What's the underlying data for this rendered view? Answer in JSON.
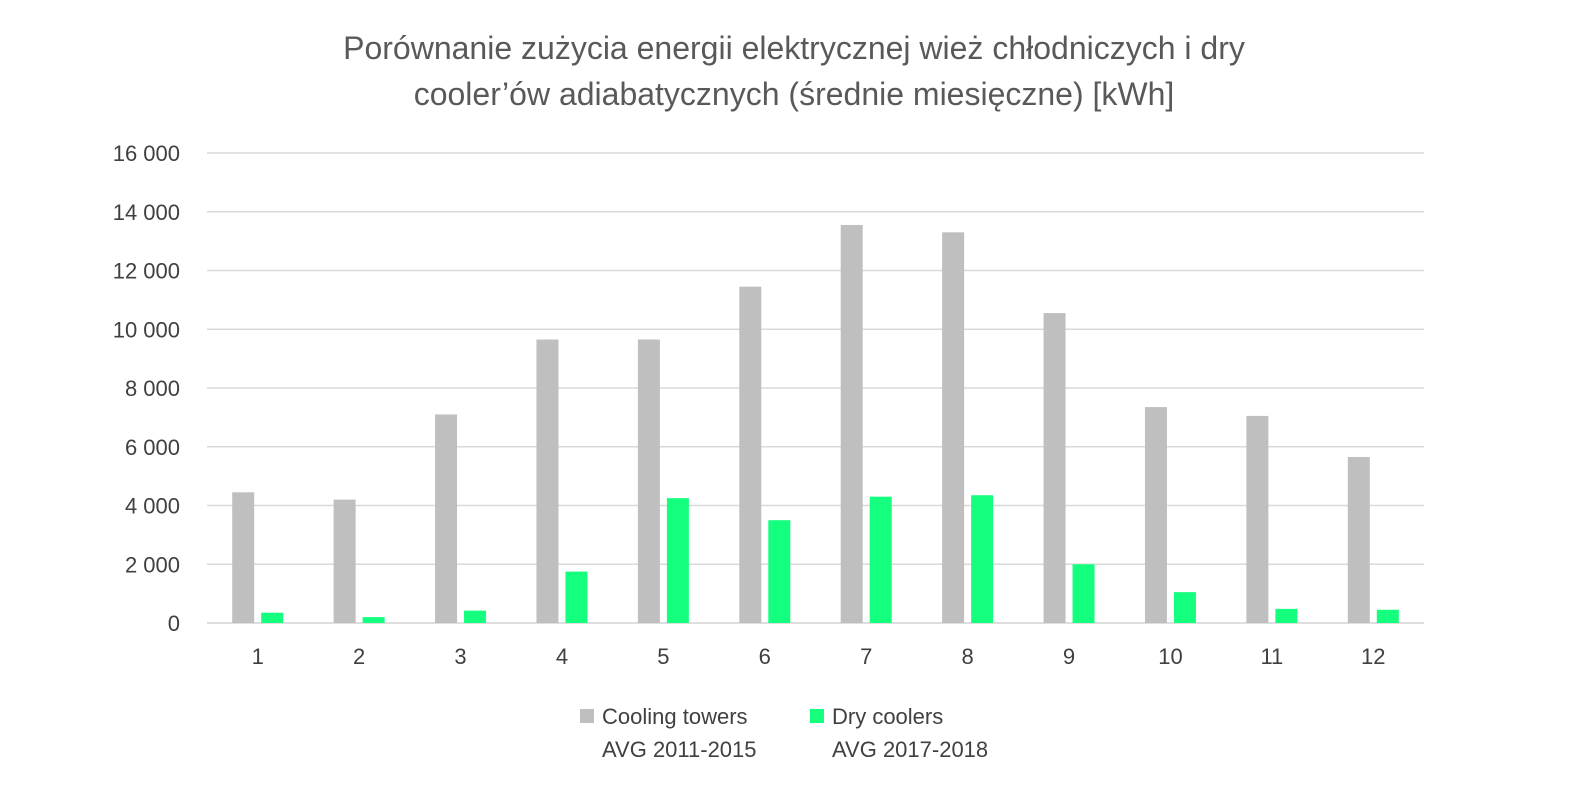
{
  "chart_data": {
    "type": "bar",
    "title": [
      "Porównanie zużycia energii elektrycznej wież chłodniczych i dry",
      "cooler’ów adiabatycznych (średnie miesięczne) [kWh]"
    ],
    "xlabel": "",
    "ylabel": "",
    "categories": [
      "1",
      "2",
      "3",
      "4",
      "5",
      "6",
      "7",
      "8",
      "9",
      "10",
      "11",
      "12"
    ],
    "ylim": [
      0,
      16000
    ],
    "yticks": [
      0,
      2000,
      4000,
      6000,
      8000,
      10000,
      12000,
      14000,
      16000
    ],
    "ytick_labels": [
      "0",
      "2 000",
      "4 000",
      "6 000",
      "8 000",
      "10 000",
      "12 000",
      "14 000",
      "16 000"
    ],
    "grid": true,
    "legend_position": "bottom",
    "series": [
      {
        "name": [
          "Cooling towers",
          "AVG 2011-2015"
        ],
        "color": "#bfbfbf",
        "values": [
          4450,
          4200,
          7100,
          9650,
          9650,
          11450,
          13550,
          13300,
          10550,
          7350,
          7050,
          5650
        ]
      },
      {
        "name": [
          "Dry coolers",
          "AVG 2017-2018"
        ],
        "color": "#14ff7e",
        "values": [
          350,
          200,
          420,
          1750,
          4250,
          3500,
          4300,
          4350,
          2000,
          1050,
          480,
          450
        ]
      }
    ]
  }
}
